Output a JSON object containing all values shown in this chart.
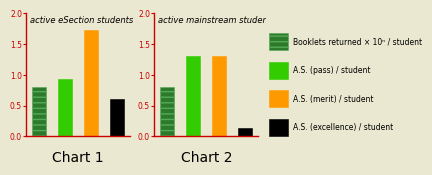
{
  "background_color": "#eae8d0",
  "chart1_title": "active eSection students",
  "chart2_title": "active mainstream students",
  "chart1_values": [
    0.8,
    0.93,
    1.72,
    0.6
  ],
  "chart2_values": [
    0.8,
    1.31,
    1.31,
    0.13
  ],
  "bar_colors": [
    "#2d7a2d",
    "#33cc00",
    "#ff9900",
    "#000000"
  ],
  "bar_hatch": [
    "---",
    null,
    null,
    null
  ],
  "ylim": [
    0,
    2.0
  ],
  "yticks": [
    0.0,
    0.5,
    1.0,
    1.5,
    2.0
  ],
  "xlabel1": "Chart 1",
  "xlabel2": "Chart 2",
  "legend_labels": [
    "Booklets returned × 10ⁿ / student",
    "A.S. (pass) / student",
    "A.S. (merit) / student",
    "A.S. (excellence) / student"
  ],
  "legend_colors": [
    "#2d7a2d",
    "#33cc00",
    "#ff9900",
    "#000000"
  ],
  "axis_color": "#cc0000",
  "tick_color": "#cc0000",
  "title_fontsize": 6.0,
  "tick_fontsize": 5.5,
  "label_fontsize": 10,
  "legend_fontsize": 5.5
}
